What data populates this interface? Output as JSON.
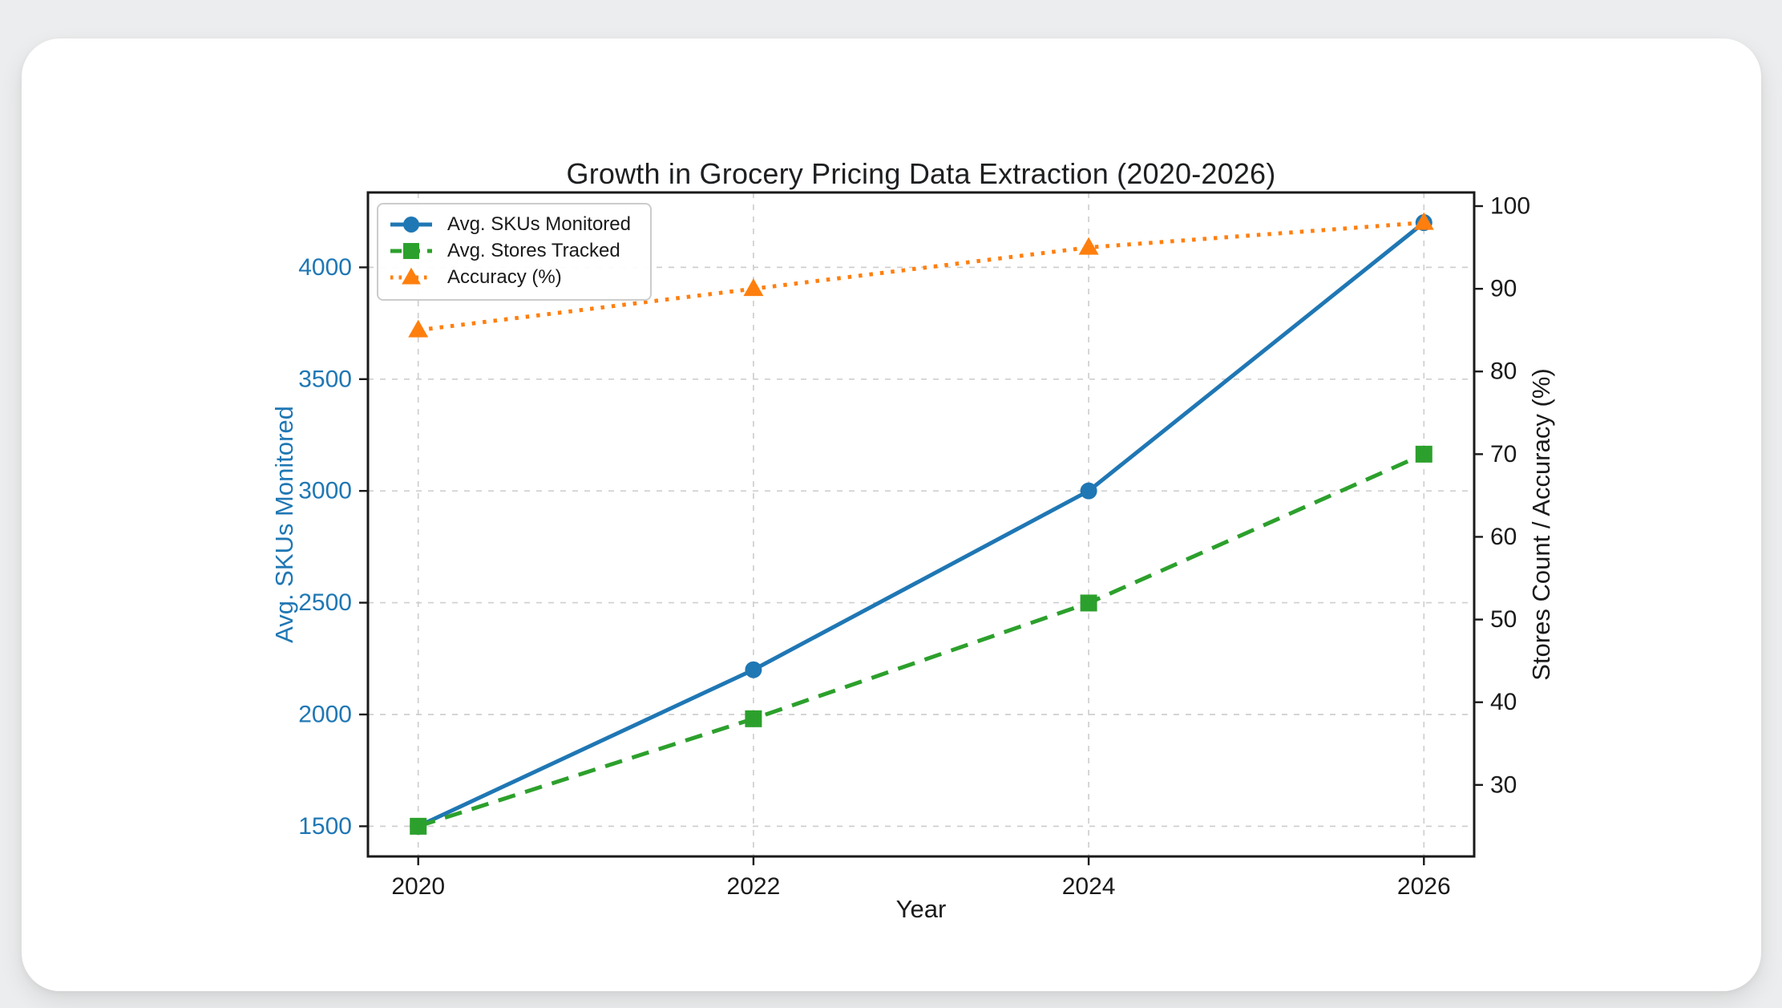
{
  "page": {
    "background": "#ecedee",
    "card_background": "#ffffff"
  },
  "chart_data": {
    "type": "line",
    "title": "Growth in Grocery Pricing Data Extraction (2020-2026)",
    "xlabel": "Year",
    "ylabel_left": "Avg. SKUs Monitored",
    "ylabel_right": "Stores Count / Accuracy (%)",
    "x": [
      2020,
      2022,
      2024,
      2026
    ],
    "x_ticks": [
      2020,
      2022,
      2024,
      2026
    ],
    "xlim": [
      2019.7,
      2026.3
    ],
    "left_ticks": [
      1500,
      2000,
      2500,
      3000,
      3500,
      4000
    ],
    "ylim_left": [
      1365,
      4335
    ],
    "right_ticks": [
      30,
      40,
      50,
      60,
      70,
      80,
      90,
      100
    ],
    "ylim_right": [
      21.35,
      101.65
    ],
    "grid": true,
    "grid_color": "#cfcfcf",
    "legend_position": "upper-left",
    "axis_colors": {
      "left": "#1f77b4",
      "right": "#1a1a1a",
      "x": "#1a1a1a"
    },
    "series": [
      {
        "name": "Avg. SKUs Monitored",
        "axis": "left",
        "color": "#1f77b4",
        "linestyle": "solid",
        "marker": "circle",
        "values": [
          1500,
          2200,
          3000,
          4200
        ]
      },
      {
        "name": "Avg. Stores Tracked",
        "axis": "right",
        "color": "#2ca02c",
        "linestyle": "dashed",
        "marker": "square",
        "values": [
          25,
          38,
          52,
          70
        ]
      },
      {
        "name": "Accuracy (%)",
        "axis": "right",
        "color": "#ff7f0e",
        "linestyle": "dotted",
        "marker": "triangle",
        "values": [
          85,
          90,
          95,
          98
        ]
      }
    ]
  }
}
